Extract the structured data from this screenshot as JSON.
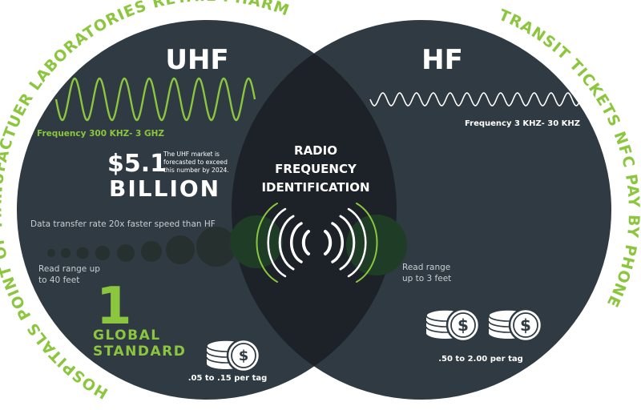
{
  "colors": {
    "circle_dark": "#2f3a42",
    "overlap": "#1c2227",
    "accent_green": "#8cc63f",
    "text_white": "#ffffff",
    "text_grey": "#c9cfd3"
  },
  "uhf": {
    "title": "UHF",
    "frequency": "Frequency 300 KHZ- 3 GHZ",
    "market_value": "$5.1",
    "market_unit": "BILLION",
    "market_note": [
      "The UHF market is",
      "forecasted to exceed",
      "this number by 2024."
    ],
    "data_rate": "Data transfer rate 20x faster speed than HF",
    "read_range": [
      "Read range up",
      "to 40 feet"
    ],
    "standard_number": "1",
    "standard_text": [
      "GLOBAL",
      "STANDARD"
    ],
    "price": ".05 to .15 per tag",
    "applications": [
      "HOSPITALS",
      "POINT OF MANUFACTUER",
      "LABORATORIES",
      "RETAIL",
      "PHARMACIES"
    ]
  },
  "hf": {
    "title": "HF",
    "frequency": "Frequency 3 KHZ- 30 KHZ",
    "read_range": [
      "Read range",
      "up to 3 feet"
    ],
    "price": ".50 to 2.00 per tag",
    "applications": [
      "TRANSIT",
      "TICKETS",
      "NFC",
      "PAY BY PHONE"
    ]
  },
  "center": {
    "title": [
      "RADIO",
      "FREQUENCY",
      "IDENTIFICATION"
    ],
    "icon": "rfid-signal-icon"
  },
  "icons": {
    "coin": "dollar-coin-stack-icon",
    "uhf_wave": "uhf-wave-icon",
    "hf_wave": "hf-wave-icon"
  }
}
